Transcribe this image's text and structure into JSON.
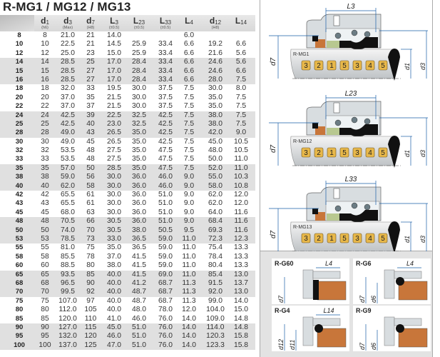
{
  "title": "R-MG1 / MG12 / MG13",
  "table": {
    "columns": [
      {
        "sym": "d",
        "sub": "1",
        "tol": "(h6)"
      },
      {
        "sym": "d",
        "sub": "3",
        "tol": "(Max)"
      },
      {
        "sym": "d",
        "sub": "7",
        "tol": "(H8)"
      },
      {
        "sym": "L",
        "sub": "3",
        "tol": "(±0.5)"
      },
      {
        "sym": "L",
        "sub": "23",
        "tol": "(±0.5)"
      },
      {
        "sym": "L",
        "sub": "33",
        "tol": "(±0.5)"
      },
      {
        "sym": "L",
        "sub": "4",
        "tol": ""
      },
      {
        "sym": "d",
        "sub": "12",
        "tol": "(H8)"
      },
      {
        "sym": "L",
        "sub": "14",
        "tol": ""
      }
    ],
    "rows": [
      [
        "8",
        "8",
        "21.0",
        "21",
        "14.0",
        "",
        "",
        "6.0",
        "",
        ""
      ],
      [
        "10",
        "10",
        "22.5",
        "21",
        "14.5",
        "25.9",
        "33.4",
        "6.6",
        "19.2",
        "6.6"
      ],
      [
        "12",
        "12",
        "25.0",
        "23",
        "15.0",
        "25.9",
        "33.4",
        "6.6",
        "21.6",
        "5.6"
      ],
      [
        "14",
        "14",
        "28.5",
        "25",
        "17.0",
        "28.4",
        "33.4",
        "6.6",
        "24.6",
        "5.6"
      ],
      [
        "15",
        "15",
        "28.5",
        "27",
        "17.0",
        "28.4",
        "33.4",
        "6.6",
        "24.6",
        "6.6"
      ],
      [
        "16",
        "16",
        "28.5",
        "27",
        "17.0",
        "28.4",
        "33.4",
        "6.6",
        "28.0",
        "7.5"
      ],
      [
        "18",
        "18",
        "32.0",
        "33",
        "19.5",
        "30.0",
        "37.5",
        "7.5",
        "30.0",
        "8.0"
      ],
      [
        "20",
        "20",
        "37.0",
        "35",
        "21.5",
        "30.0",
        "37.5",
        "7.5",
        "35.0",
        "7.5"
      ],
      [
        "22",
        "22",
        "37.0",
        "37",
        "21.5",
        "30.0",
        "37.5",
        "7.5",
        "35.0",
        "7.5"
      ],
      [
        "24",
        "24",
        "42.5",
        "39",
        "22.5",
        "32.5",
        "42.5",
        "7.5",
        "38.0",
        "7.5"
      ],
      [
        "25",
        "25",
        "42.5",
        "40",
        "23.0",
        "32.5",
        "42.5",
        "7.5",
        "38.0",
        "7.5"
      ],
      [
        "28",
        "28",
        "49.0",
        "43",
        "26.5",
        "35.0",
        "42.5",
        "7.5",
        "42.0",
        "9.0"
      ],
      [
        "30",
        "30",
        "49.0",
        "45",
        "26.5",
        "35.0",
        "42.5",
        "7.5",
        "45.0",
        "10.5"
      ],
      [
        "32",
        "32",
        "53.5",
        "48",
        "27.5",
        "35.0",
        "47.5",
        "7.5",
        "48.0",
        "10.5"
      ],
      [
        "33",
        "33",
        "53.5",
        "48",
        "27.5",
        "35.0",
        "47.5",
        "7.5",
        "50.0",
        "11.0"
      ],
      [
        "35",
        "35",
        "57.0",
        "50",
        "28.5",
        "35.0",
        "47.5",
        "7.5",
        "52.0",
        "11.0"
      ],
      [
        "38",
        "38",
        "59.0",
        "56",
        "30.0",
        "36.0",
        "46.0",
        "9.0",
        "55.0",
        "10.3"
      ],
      [
        "40",
        "40",
        "62.0",
        "58",
        "30.0",
        "36.0",
        "46.0",
        "9.0",
        "58.0",
        "10.8"
      ],
      [
        "42",
        "42",
        "65.5",
        "61",
        "30.0",
        "36.0",
        "51.0",
        "9.0",
        "62.0",
        "12.0"
      ],
      [
        "43",
        "43",
        "65.5",
        "61",
        "30.0",
        "36.0",
        "51.0",
        "9.0",
        "62.0",
        "12.0"
      ],
      [
        "45",
        "45",
        "68.0",
        "63",
        "30.0",
        "36.0",
        "51.0",
        "9.0",
        "64.0",
        "11.6"
      ],
      [
        "48",
        "48",
        "70.5",
        "66",
        "30.5",
        "36.0",
        "51.0",
        "9.0",
        "68.4",
        "11.6"
      ],
      [
        "50",
        "50",
        "74.0",
        "70",
        "30.5",
        "38.0",
        "50.5",
        "9.5",
        "69.3",
        "11.6"
      ],
      [
        "53",
        "53",
        "78.5",
        "73",
        "33.0",
        "36.5",
        "59.0",
        "11.0",
        "72.3",
        "12.3"
      ],
      [
        "55",
        "55",
        "81.0",
        "75",
        "35.0",
        "36.5",
        "59.0",
        "11.0",
        "75.4",
        "13.3"
      ],
      [
        "58",
        "58",
        "85.5",
        "78",
        "37.0",
        "41.5",
        "59.0",
        "11.0",
        "78.4",
        "13.3"
      ],
      [
        "60",
        "60",
        "88.5",
        "80",
        "38.0",
        "41.5",
        "59.0",
        "11.0",
        "80.4",
        "13.3"
      ],
      [
        "65",
        "65",
        "93.5",
        "85",
        "40.0",
        "41.5",
        "69.0",
        "11.0",
        "85.4",
        "13.0"
      ],
      [
        "68",
        "68",
        "96.5",
        "90",
        "40.0",
        "41.2",
        "68.7",
        "11.3",
        "91.5",
        "13.7"
      ],
      [
        "70",
        "70",
        "99.5",
        "92",
        "40.0",
        "48.7",
        "68.7",
        "11.3",
        "92.0",
        "13.0"
      ],
      [
        "75",
        "75",
        "107.0",
        "97",
        "40.0",
        "48.7",
        "68.7",
        "11.3",
        "99.0",
        "14.0"
      ],
      [
        "80",
        "80",
        "112.0",
        "105",
        "40.0",
        "48.0",
        "78.0",
        "12.0",
        "104.0",
        "15.0"
      ],
      [
        "85",
        "85",
        "120.0",
        "110",
        "41.0",
        "46.0",
        "76.0",
        "14.0",
        "109.0",
        "14.8"
      ],
      [
        "90",
        "90",
        "127.0",
        "115",
        "45.0",
        "51.0",
        "76.0",
        "14.0",
        "114.0",
        "14.8"
      ],
      [
        "95",
        "95",
        "132.0",
        "120",
        "46.0",
        "51.0",
        "76.0",
        "14.0",
        "120.3",
        "15.8"
      ],
      [
        "100",
        "100",
        "137.0",
        "125",
        "47.0",
        "51.0",
        "76.0",
        "14.0",
        "123.3",
        "15.8"
      ]
    ]
  },
  "diagrams": [
    {
      "model": "R-MG1",
      "length": "L3",
      "d_left": "d7",
      "d_inner": "d1",
      "d_outer": "d3",
      "parts": [
        "3",
        "2",
        "1",
        "5",
        "3",
        "4",
        "5"
      ]
    },
    {
      "model": "R-MG12",
      "length": "L23",
      "d_left": "d7",
      "d_inner": "d1",
      "d_outer": "d3",
      "parts": [
        "3",
        "2",
        "1",
        "5",
        "3",
        "4",
        "5"
      ]
    },
    {
      "model": "R-MG13",
      "length": "L33",
      "d_left": "d7",
      "d_inner": "d1",
      "d_outer": "d3",
      "parts": [
        "3",
        "2",
        "1",
        "5",
        "3",
        "4",
        "5"
      ]
    }
  ],
  "seats": [
    {
      "name": "R-G60",
      "dims": [
        "L4",
        "d7"
      ]
    },
    {
      "name": "R-G6",
      "dims": [
        "L4",
        "d7",
        "d6"
      ]
    },
    {
      "name": "R-G4",
      "dims": [
        "L14",
        "d12",
        "d11"
      ]
    },
    {
      "name": "R-G9",
      "dims": [
        "d7",
        "d6"
      ]
    }
  ],
  "colors": {
    "dimension": "#1a5fa8",
    "badge": "#e8b84a",
    "seat": "#c8763a",
    "housing": "#d8dde0",
    "row_shade": "#e0e0e0"
  }
}
